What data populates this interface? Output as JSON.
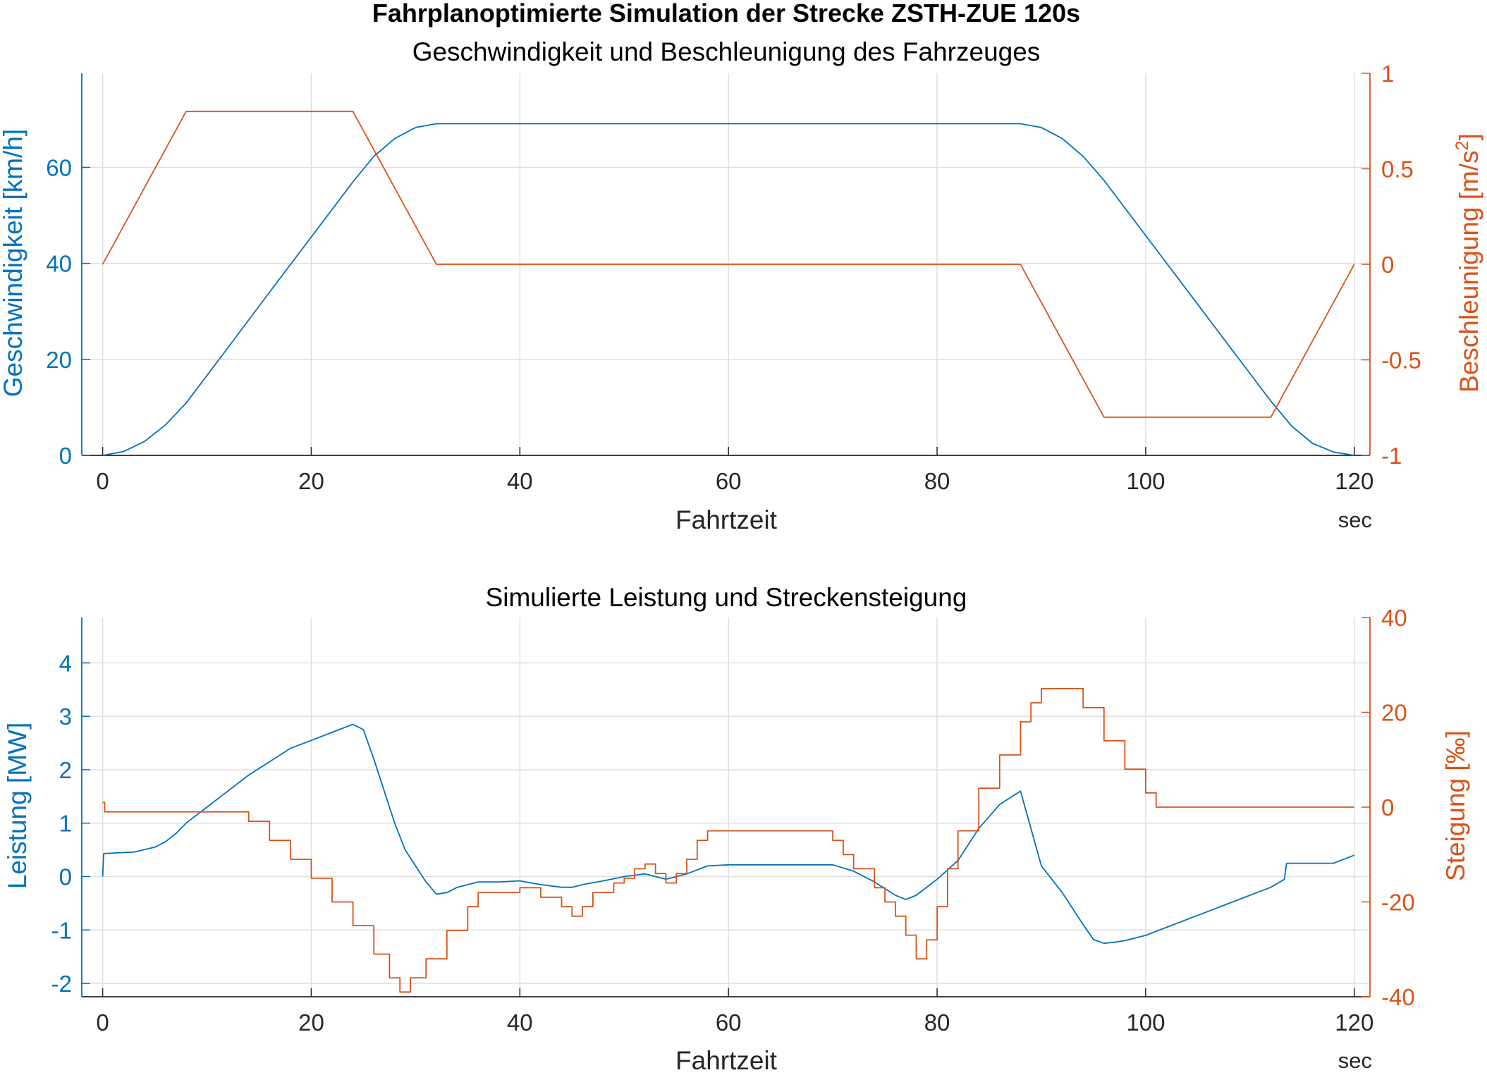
{
  "figure_title": "Fahrplanoptimierte Simulation der Strecke ZSTH-ZUE 120s",
  "colors": {
    "blue": "#0072BD",
    "orange": "#D95319",
    "grid": "#DFDFDF",
    "axis": "#262626"
  },
  "chart_data": [
    {
      "type": "line",
      "title": "Geschwindigkeit und Beschleunigung des Fahrzeuges",
      "xlabel": "Fahrtzeit",
      "x_unit": "sec",
      "xlim": [
        -2,
        121.5
      ],
      "xticks": [
        0,
        20,
        40,
        60,
        80,
        100,
        120
      ],
      "ylabel_left": "Geschwindigkeit [km/h]",
      "ylim_left": [
        0,
        79.6
      ],
      "yticks_left": [
        0,
        20,
        40,
        60
      ],
      "ylabel_right": "Beschleunigung [m/s",
      "ylabel_right_sup": "2",
      "ylabel_right_end": "]",
      "ylim_right": [
        -1,
        1
      ],
      "yticks_right": [
        -1,
        -0.5,
        0,
        0.5,
        1
      ],
      "ytick_labels_right": [
        "-1",
        "-0.5",
        "0",
        "0.5",
        "1"
      ],
      "grid": true,
      "series": [
        {
          "axis": "left",
          "color": "#0072BD",
          "x": [
            0,
            2,
            4,
            6,
            8,
            12,
            16,
            20,
            24,
            26,
            28,
            30,
            32,
            88,
            90,
            92,
            94,
            96,
            100,
            104,
            108,
            112,
            114,
            116,
            118,
            120
          ],
          "y": [
            0,
            0.8,
            2.9,
            6.3,
            10.9,
            22.4,
            34.0,
            45.5,
            57.0,
            62.3,
            66.0,
            68.3,
            69.1,
            69.1,
            68.3,
            66.0,
            62.3,
            57.3,
            45.8,
            34.3,
            22.8,
            11.3,
            6.1,
            2.5,
            0.7,
            0
          ]
        },
        {
          "axis": "right",
          "color": "#D95319",
          "x": [
            0,
            8,
            24,
            32,
            88,
            96,
            112,
            120
          ],
          "y": [
            0,
            0.8,
            0.8,
            0,
            0,
            -0.8,
            -0.8,
            0
          ]
        }
      ]
    },
    {
      "type": "line",
      "title": "Simulierte Leistung und Streckensteigung",
      "xlabel": "Fahrtzeit",
      "x_unit": "sec",
      "xlim": [
        -2,
        121.5
      ],
      "xticks": [
        0,
        20,
        40,
        60,
        80,
        100,
        120
      ],
      "ylabel_left": "Leistung [MW]",
      "ylim_left": [
        -2.25,
        4.85
      ],
      "yticks_left": [
        -2,
        -1,
        0,
        1,
        2,
        3,
        4
      ],
      "ylabel_right": "Steigung [‰]",
      "ylim_right": [
        -40,
        40
      ],
      "yticks_right": [
        -40,
        -20,
        0,
        20,
        40
      ],
      "grid": true,
      "series": [
        {
          "axis": "left",
          "color": "#0072BD",
          "x": [
            0,
            0.1,
            3,
            5,
            6,
            7,
            8,
            10,
            12,
            14,
            16,
            18,
            20,
            22,
            24,
            25,
            26,
            28,
            29,
            30,
            31,
            32,
            33,
            34,
            35,
            36,
            38,
            40,
            42,
            44,
            45,
            46,
            48,
            50,
            52,
            54,
            56,
            58,
            60,
            62,
            64,
            66,
            68,
            70,
            72,
            74,
            76,
            77,
            78,
            80,
            82,
            84,
            86,
            88,
            90,
            92,
            94,
            95,
            96,
            97,
            98,
            100,
            102,
            104,
            106,
            108,
            110,
            112,
            113.3,
            113.5,
            116,
            118,
            120
          ],
          "y": [
            0,
            0.43,
            0.46,
            0.55,
            0.65,
            0.8,
            1.0,
            1.3,
            1.6,
            1.9,
            2.15,
            2.4,
            2.55,
            2.7,
            2.85,
            2.75,
            2.2,
            1.0,
            0.5,
            0.2,
            -0.1,
            -0.33,
            -0.3,
            -0.2,
            -0.15,
            -0.1,
            -0.1,
            -0.08,
            -0.15,
            -0.2,
            -0.2,
            -0.15,
            -0.08,
            0.0,
            0.05,
            -0.05,
            0.05,
            0.2,
            0.22,
            0.22,
            0.22,
            0.22,
            0.22,
            0.22,
            0.1,
            -0.1,
            -0.35,
            -0.43,
            -0.35,
            -0.05,
            0.3,
            0.9,
            1.35,
            1.6,
            0.2,
            -0.3,
            -0.9,
            -1.18,
            -1.25,
            -1.23,
            -1.2,
            -1.1,
            -0.95,
            -0.8,
            -0.65,
            -0.5,
            -0.35,
            -0.2,
            -0.05,
            0.25,
            0.25,
            0.25,
            0.4
          ]
        },
        {
          "axis": "right",
          "color": "#D95319",
          "step": true,
          "x": [
            0,
            0.2,
            14,
            16,
            18,
            20,
            22,
            24,
            26,
            27.5,
            28.5,
            29.5,
            31,
            33,
            35,
            36,
            38,
            40,
            42,
            44,
            45,
            46,
            47,
            49,
            50,
            51,
            52,
            53,
            54,
            55,
            56,
            57,
            58,
            60,
            62,
            64,
            66,
            69,
            70,
            71,
            72,
            74,
            75,
            76,
            77,
            78,
            79,
            80,
            81,
            82,
            84,
            86,
            88,
            89,
            90,
            93,
            94,
            96,
            98,
            100,
            101,
            120
          ],
          "y": [
            1,
            -1,
            -3,
            -7,
            -11,
            -15,
            -20,
            -25,
            -31,
            -36,
            -39,
            -36,
            -32,
            -26,
            -21,
            -18,
            -18,
            -17,
            -19,
            -21,
            -23,
            -21,
            -18,
            -16,
            -15,
            -13,
            -12,
            -14,
            -16,
            -14,
            -11,
            -7,
            -5,
            -5,
            -5,
            -5,
            -5,
            -5,
            -7,
            -10,
            -13,
            -17,
            -20,
            -23,
            -27,
            -32,
            -28,
            -21,
            -13,
            -5,
            4,
            11,
            18,
            22,
            25,
            25,
            21,
            14,
            8,
            3,
            0,
            0
          ]
        }
      ]
    }
  ]
}
